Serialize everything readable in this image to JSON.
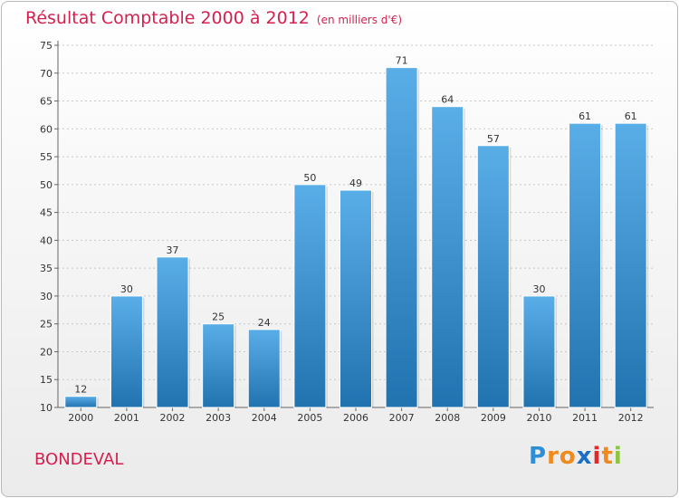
{
  "chart_data": {
    "type": "bar",
    "title": "Résultat Comptable 2000 à 2012",
    "subtitle": "(en milliers d'€)",
    "categories": [
      "2000",
      "2001",
      "2002",
      "2003",
      "2004",
      "2005",
      "2006",
      "2007",
      "2008",
      "2009",
      "2010",
      "2011",
      "2012"
    ],
    "values": [
      12,
      30,
      37,
      25,
      24,
      50,
      49,
      71,
      64,
      57,
      30,
      61,
      61
    ],
    "ylim": [
      10,
      75
    ],
    "yticks": [
      10,
      15,
      20,
      25,
      30,
      35,
      40,
      45,
      50,
      55,
      60,
      65,
      70,
      75
    ],
    "xlabel": "",
    "ylabel": "",
    "grid": true,
    "bar_color_top": "#5aaee8",
    "bar_color_bottom": "#2173b0"
  },
  "commune": "BONDEVAL",
  "logo": {
    "letters": [
      "P",
      "r",
      "o",
      "x",
      "i",
      "t",
      "i"
    ],
    "colors": [
      "#2e8fd6",
      "#f08a1c",
      "#f08a1c",
      "#1a6fc4",
      "#e5292b",
      "#f08a1c",
      "#8cc63f"
    ]
  }
}
